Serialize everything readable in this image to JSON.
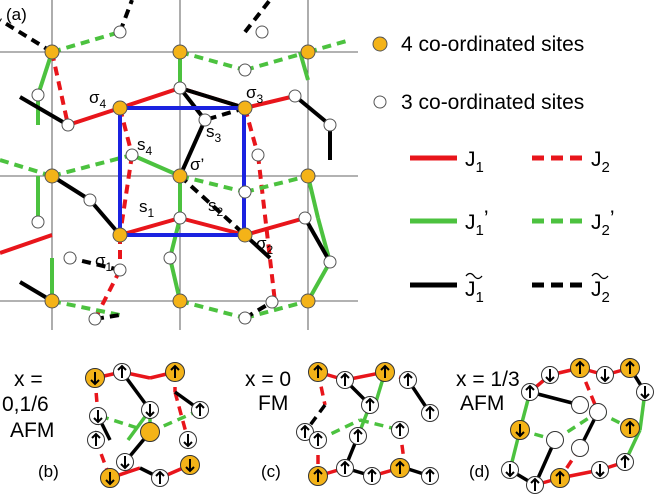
{
  "panel_labels": {
    "a": "(a)",
    "b": "(b)",
    "c": "(c)",
    "d": "(d)"
  },
  "site_labels": {
    "sigma1": "σ",
    "sigma1_sub": "1",
    "sigma2": "σ",
    "sigma2_sub": "2",
    "sigma3": "σ",
    "sigma3_sub": "3",
    "sigma4": "σ",
    "sigma4_sub": "4",
    "sigma_prime": "σ’",
    "s1": "s",
    "s1_sub": "1",
    "s2": "s",
    "s2_sub": "2",
    "s3": "s",
    "s3_sub": "3",
    "s4": "s",
    "s4_sub": "4"
  },
  "legend": {
    "four_coord": "4 co-ordinated sites",
    "three_coord": "3 co-ordinated sites",
    "J1": "J",
    "J1_sub": "1",
    "J2": "J",
    "J2_sub": "2",
    "J1p": "J",
    "J1p_sub": "1",
    "J1p_prime": "’",
    "J2p": "J",
    "J2p_sub": "2",
    "J2p_prime": "’",
    "J1t": "J",
    "J1t_sub": "1",
    "J2t": "J",
    "J2t_sub": "2"
  },
  "configs": {
    "b": {
      "line1": "x =",
      "line2": "0,1/6",
      "line3": "AFM"
    },
    "c": {
      "line1": "x = 0",
      "line2": "FM"
    },
    "d": {
      "line1": "x = 1/3",
      "line2": "AFM"
    }
  },
  "colors": {
    "J1": "#e8151b",
    "J1p": "#4cc23f",
    "Jt": "#000000",
    "site4": "#f4b318",
    "site3": "#ffffff",
    "cell": "#1b22e0"
  },
  "icons": {
    "up": "up-arrow-icon",
    "down": "down-arrow-icon"
  }
}
